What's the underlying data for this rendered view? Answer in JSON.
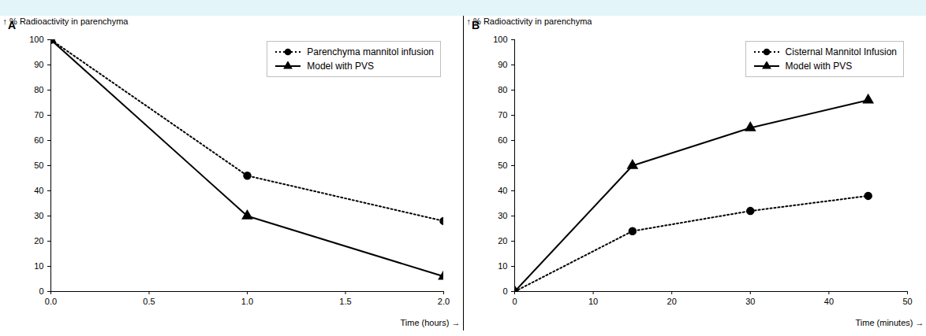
{
  "chart_data": [
    {
      "type": "line",
      "title": "A",
      "x_label": "Time (hours)",
      "y_label": "% Radioactivity in parenchyma",
      "x": [
        0,
        1,
        2
      ],
      "series": [
        {
          "name": "Parenchyma mannitol infusion",
          "color": "#000000",
          "marker": "circle",
          "line_style": "dotted",
          "values": [
            100,
            46,
            28
          ]
        },
        {
          "name": "Model with PVS",
          "color": "#000000",
          "marker": "triangle",
          "line_style": "solid",
          "values": [
            100,
            30,
            6
          ]
        }
      ],
      "xlim": [
        0,
        2
      ],
      "xticks": [
        {
          "value": 0,
          "label": "0.0"
        },
        {
          "value": 0.5,
          "label": "0.5"
        },
        {
          "value": 1,
          "label": "1.0"
        },
        {
          "value": 1.5,
          "label": "1.5"
        },
        {
          "value": 2,
          "label": "2.0"
        }
      ],
      "ylim": [
        0,
        100
      ],
      "yticks": [
        0,
        10,
        20,
        30,
        40,
        50,
        60,
        70,
        80,
        90,
        100
      ],
      "grid": false,
      "legend": "top-right"
    },
    {
      "type": "line",
      "title": "B",
      "x_label": "Time (minutes)",
      "y_label": "% Radioactivity in parenchyma",
      "x": [
        0,
        15,
        30,
        45
      ],
      "series": [
        {
          "name": "Cisternal Mannitol Infusion",
          "color": "#000000",
          "marker": "circle",
          "line_style": "dotted",
          "values": [
            0,
            24,
            32,
            38
          ]
        },
        {
          "name": "Model with PVS",
          "color": "#000000",
          "marker": "triangle",
          "line_style": "solid",
          "values": [
            0,
            50,
            65,
            76
          ]
        }
      ],
      "xlim": [
        0,
        50
      ],
      "xticks": [
        0,
        10,
        20,
        30,
        40,
        50
      ],
      "ylim": [
        0,
        100
      ],
      "yticks": [
        0,
        10,
        20,
        30,
        40,
        50,
        60,
        70,
        80,
        90,
        100
      ],
      "grid": false,
      "legend": "top-right"
    }
  ]
}
